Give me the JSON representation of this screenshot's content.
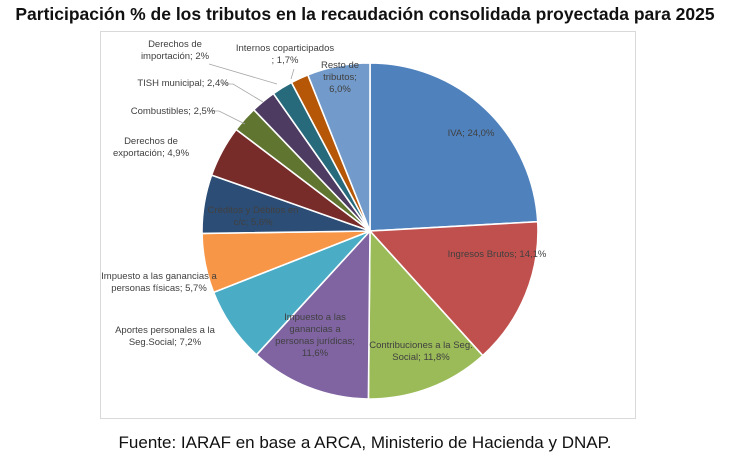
{
  "title": "Participación % de los tributos en la recaudación consolidada proyectada para 2025",
  "source": "Fuente: IARAF en base a ARCA, Ministerio de Hacienda y DNAP.",
  "chart_data": {
    "type": "pie",
    "legend": "none",
    "slices": [
      {
        "lines": [
          "IVA; 24,0%"
        ],
        "value": 24.0,
        "color": "#4f81bd",
        "label_color": "#404040"
      },
      {
        "lines": [
          "Ingresos Brutos; 14,1%"
        ],
        "value": 14.1,
        "color": "#c0504d",
        "label_color": "#404040"
      },
      {
        "lines": [
          "Contribuciones a la Seg.",
          "Social; 11,8%"
        ],
        "value": 11.8,
        "color": "#9bbb59",
        "label_color": "#404040"
      },
      {
        "lines": [
          "Impuesto a las",
          "ganancias a",
          "personas jurídicas;",
          "11,6%"
        ],
        "value": 11.6,
        "color": "#8064a2",
        "label_color": "#404040"
      },
      {
        "lines": [
          "Aportes personales a la",
          "Seg.Social; 7,2%"
        ],
        "value": 7.2,
        "color": "#4bacc6",
        "label_color": "#404040"
      },
      {
        "lines": [
          "Impuesto a las ganancias a",
          "personas físicas; 5,7%"
        ],
        "value": 5.7,
        "color": "#f79646",
        "label_color": "#404040"
      },
      {
        "lines": [
          "Créditos y Débitos en",
          "c/c; 5,6%"
        ],
        "value": 5.6,
        "color": "#2c4d75",
        "label_color": "#ffffff"
      },
      {
        "lines": [
          "Derechos de",
          "exportación; 4,9%"
        ],
        "value": 4.9,
        "color": "#772c2a",
        "label_color": "#404040"
      },
      {
        "lines": [
          "Combustibles; 2,5%"
        ],
        "value": 2.5,
        "color": "#5f7530",
        "label_color": "#404040"
      },
      {
        "lines": [
          "TISH municipal; 2,4%"
        ],
        "value": 2.4,
        "color": "#4d3b62",
        "label_color": "#404040"
      },
      {
        "lines": [
          "Derechos de",
          "importación; 2%"
        ],
        "value": 2.0,
        "color": "#276a7c",
        "label_color": "#222222"
      },
      {
        "lines": [
          "Internos coparticipados",
          "; 1,7%"
        ],
        "value": 1.7,
        "color": "#b65708",
        "label_color": "#404040"
      },
      {
        "lines": [
          "Resto de",
          "tributos;",
          "6,0%"
        ],
        "value": 6.0,
        "color": "#729aca",
        "label_color": "#404040"
      }
    ]
  }
}
